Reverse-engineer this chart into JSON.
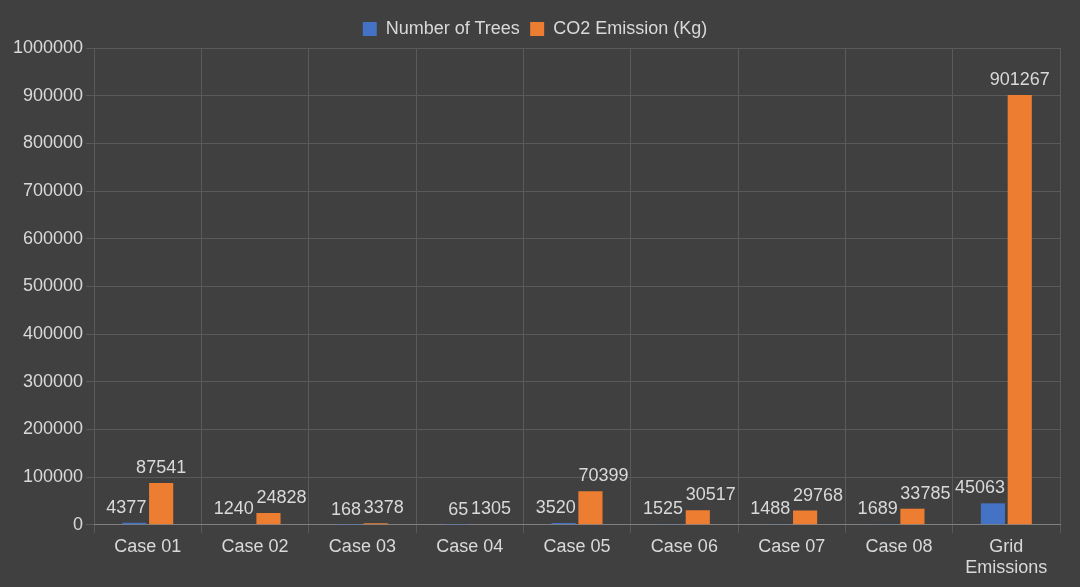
{
  "chart_data": {
    "type": "bar",
    "categories": [
      "Case 01",
      "Case 02",
      "Case 03",
      "Case 04",
      "Case 05",
      "Case 06",
      "Case 07",
      "Case 08",
      "Grid Emissions"
    ],
    "series": [
      {
        "name": "Number of Trees",
        "color": "#4472c4",
        "values": [
          4377,
          1240,
          168,
          65,
          3520,
          1525,
          1488,
          1689,
          45063
        ]
      },
      {
        "name": "CO2 Emission (Kg)",
        "color": "#ed7d31",
        "values": [
          87541,
          24828,
          3378,
          1305,
          70399,
          30517,
          29768,
          33785,
          901267
        ]
      }
    ],
    "ylim": [
      0,
      1000000
    ],
    "yticks": [
      0,
      100000,
      200000,
      300000,
      400000,
      500000,
      600000,
      700000,
      800000,
      900000,
      1000000
    ],
    "grid": true,
    "legend": "top",
    "data_labels": true
  }
}
